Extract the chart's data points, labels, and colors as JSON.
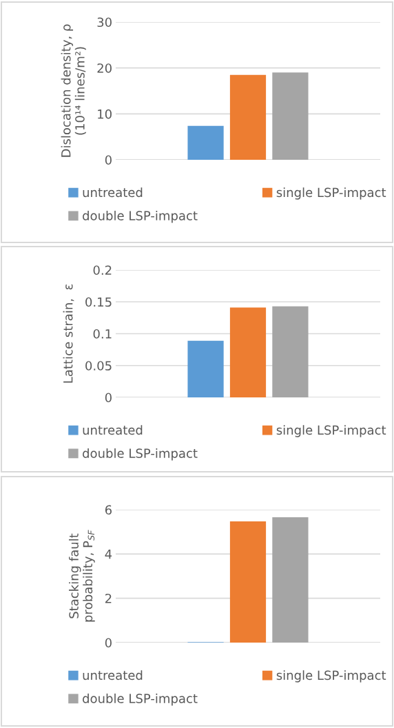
{
  "chart_data": [
    {
      "type": "bar",
      "categories": [
        null
      ],
      "ylabel": "Dislocation density, ρ\n(10¹⁴ lines/m²)",
      "ylim": [
        0,
        30
      ],
      "yticks": [
        0,
        10,
        20,
        30
      ],
      "grid": "y",
      "legend": "bottom",
      "series": [
        {
          "name": "untreated",
          "color": "#5b9bd5",
          "values": [
            7.4
          ]
        },
        {
          "name": "single LSP-impact",
          "color": "#ed7d31",
          "values": [
            18.5
          ]
        },
        {
          "name": "double LSP-impact",
          "color": "#a5a5a5",
          "values": [
            19.0
          ]
        }
      ]
    },
    {
      "type": "bar",
      "categories": [
        null
      ],
      "ylabel": "Lattice strain,  ε",
      "ylim": [
        0,
        0.2
      ],
      "yticks": [
        0,
        0.05,
        0.1,
        0.15,
        0.2
      ],
      "grid": "y",
      "legend": "bottom",
      "series": [
        {
          "name": "untreated",
          "color": "#5b9bd5",
          "values": [
            0.089
          ]
        },
        {
          "name": "single LSP-impact",
          "color": "#ed7d31",
          "values": [
            0.141
          ]
        },
        {
          "name": "double LSP-impact",
          "color": "#a5a5a5",
          "values": [
            0.143
          ]
        }
      ]
    },
    {
      "type": "bar",
      "categories": [
        null
      ],
      "ylabel": "Stacking fault\nprobability, P$_{SF}$",
      "ylim": [
        0,
        6
      ],
      "yticks": [
        0,
        2,
        4,
        6
      ],
      "grid": "y",
      "legend": "bottom",
      "series": [
        {
          "name": "untreated",
          "color": "#5b9bd5",
          "values": [
            0.02
          ]
        },
        {
          "name": "single LSP-impact",
          "color": "#ed7d31",
          "values": [
            5.47
          ]
        },
        {
          "name": "double LSP-impact",
          "color": "#a5a5a5",
          "values": [
            5.66
          ]
        }
      ]
    }
  ]
}
